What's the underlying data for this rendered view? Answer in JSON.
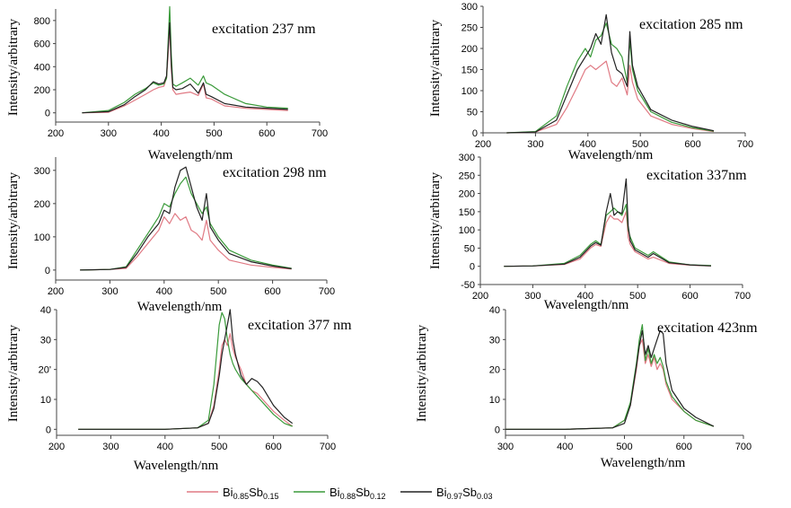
{
  "series_colors": [
    "#e07a84",
    "#3a9a3a",
    "#222222"
  ],
  "chart_data": [
    {
      "type": "line",
      "title": "excitation 237 nm",
      "xlabel": "Wavelength/nm",
      "ylabel": "Intensity/arbitrary",
      "xlim": [
        200,
        700
      ],
      "ylim": [
        -80,
        900
      ],
      "xticks": [
        200,
        300,
        400,
        500,
        600,
        700
      ],
      "yticks": [
        0,
        200,
        400,
        600,
        800
      ],
      "series": [
        {
          "x": [
            250,
            300,
            330,
            350,
            370,
            385,
            395,
            405,
            410,
            413,
            416,
            419,
            422,
            428,
            440,
            455,
            470,
            480,
            485,
            495,
            520,
            560,
            600,
            640
          ],
          "y": [
            0,
            5,
            60,
            110,
            160,
            200,
            220,
            230,
            300,
            500,
            750,
            380,
            200,
            160,
            170,
            180,
            150,
            250,
            130,
            120,
            60,
            40,
            30,
            20
          ]
        },
        {
          "x": [
            250,
            300,
            330,
            350,
            370,
            385,
            395,
            405,
            410,
            413,
            416,
            419,
            422,
            428,
            440,
            455,
            470,
            480,
            485,
            495,
            520,
            560,
            600,
            640
          ],
          "y": [
            0,
            20,
            90,
            160,
            210,
            260,
            240,
            250,
            300,
            600,
            920,
            500,
            250,
            230,
            260,
            300,
            240,
            320,
            260,
            240,
            160,
            80,
            50,
            40
          ]
        },
        {
          "x": [
            250,
            300,
            330,
            350,
            370,
            385,
            395,
            405,
            410,
            413,
            416,
            419,
            422,
            428,
            440,
            455,
            470,
            480,
            485,
            495,
            520,
            560,
            600,
            640
          ],
          "y": [
            0,
            10,
            70,
            140,
            200,
            270,
            250,
            260,
            320,
            550,
            780,
            420,
            220,
            200,
            210,
            250,
            170,
            260,
            160,
            140,
            80,
            50,
            40,
            30
          ]
        }
      ]
    },
    {
      "type": "line",
      "title": "excitation 285 nm",
      "xlabel": "Wavelength/nm",
      "ylabel": "Intensity/arbitrary",
      "xlim": [
        200,
        700
      ],
      "ylim": [
        0,
        300
      ],
      "xticks": [
        200,
        300,
        400,
        500,
        600,
        700
      ],
      "yticks": [
        0,
        50,
        100,
        150,
        200,
        250,
        300
      ],
      "series": [
        {
          "x": [
            245,
            300,
            340,
            360,
            380,
            395,
            405,
            415,
            425,
            435,
            445,
            455,
            465,
            475,
            480,
            485,
            495,
            520,
            560,
            600,
            640
          ],
          "y": [
            0,
            2,
            20,
            60,
            110,
            150,
            160,
            150,
            160,
            170,
            120,
            110,
            130,
            90,
            160,
            120,
            80,
            40,
            20,
            10,
            3
          ]
        },
        {
          "x": [
            245,
            300,
            340,
            360,
            380,
            395,
            405,
            415,
            425,
            435,
            445,
            455,
            465,
            475,
            480,
            485,
            495,
            520,
            560,
            600,
            640
          ],
          "y": [
            0,
            3,
            40,
            110,
            170,
            200,
            180,
            220,
            230,
            260,
            210,
            200,
            180,
            120,
            220,
            150,
            100,
            50,
            25,
            12,
            4
          ]
        },
        {
          "x": [
            245,
            300,
            340,
            360,
            380,
            395,
            405,
            415,
            425,
            435,
            445,
            455,
            465,
            475,
            480,
            485,
            495,
            520,
            560,
            600,
            640
          ],
          "y": [
            0,
            2,
            30,
            90,
            150,
            180,
            200,
            235,
            210,
            280,
            190,
            150,
            140,
            110,
            240,
            160,
            110,
            55,
            30,
            15,
            5
          ]
        }
      ]
    },
    {
      "type": "line",
      "title": "excitation 298 nm",
      "xlabel": "Wavelength/nm",
      "ylabel": "Intensity/arbitrary",
      "xlim": [
        200,
        700
      ],
      "ylim": [
        -30,
        340
      ],
      "xticks": [
        200,
        300,
        400,
        500,
        600,
        700
      ],
      "yticks": [
        0,
        100,
        200,
        300
      ],
      "series": [
        {
          "x": [
            245,
            300,
            330,
            350,
            370,
            390,
            400,
            410,
            420,
            430,
            440,
            450,
            460,
            470,
            478,
            485,
            500,
            520,
            560,
            600,
            635
          ],
          "y": [
            0,
            2,
            5,
            40,
            80,
            120,
            160,
            140,
            170,
            150,
            160,
            120,
            110,
            90,
            150,
            90,
            60,
            30,
            15,
            8,
            3
          ]
        },
        {
          "x": [
            245,
            300,
            330,
            350,
            370,
            390,
            400,
            410,
            420,
            430,
            440,
            450,
            460,
            470,
            478,
            485,
            500,
            520,
            560,
            600,
            635
          ],
          "y": [
            0,
            2,
            10,
            60,
            110,
            160,
            200,
            190,
            230,
            260,
            280,
            230,
            200,
            170,
            190,
            140,
            100,
            60,
            30,
            15,
            5
          ]
        },
        {
          "x": [
            245,
            300,
            330,
            350,
            370,
            390,
            400,
            410,
            420,
            430,
            440,
            450,
            460,
            470,
            478,
            485,
            500,
            520,
            560,
            600,
            635
          ],
          "y": [
            0,
            2,
            8,
            50,
            100,
            140,
            180,
            170,
            250,
            300,
            310,
            250,
            190,
            150,
            230,
            130,
            90,
            50,
            25,
            12,
            4
          ]
        }
      ]
    },
    {
      "type": "line",
      "title": "excitation 337nm",
      "xlabel": "Wavelength/nm",
      "ylabel": "Intensity/arbitrary",
      "xlim": [
        200,
        700
      ],
      "ylim": [
        -50,
        300
      ],
      "xticks": [
        200,
        300,
        400,
        500,
        600,
        700
      ],
      "yticks": [
        -50,
        0,
        50,
        100,
        150,
        200,
        250,
        300
      ],
      "ytick_labels": [
        "-50",
        "0",
        "50",
        "100",
        "150",
        "200",
        "250",
        "300"
      ],
      "series": [
        {
          "x": [
            245,
            300,
            360,
            390,
            410,
            420,
            430,
            440,
            448,
            455,
            462,
            470,
            478,
            482,
            486,
            495,
            520,
            530,
            560,
            600,
            640
          ],
          "y": [
            0,
            1,
            5,
            20,
            50,
            60,
            55,
            120,
            140,
            130,
            130,
            120,
            150,
            80,
            60,
            40,
            20,
            25,
            8,
            3,
            1
          ]
        },
        {
          "x": [
            245,
            300,
            360,
            390,
            410,
            420,
            430,
            440,
            448,
            455,
            462,
            470,
            478,
            482,
            486,
            495,
            520,
            530,
            560,
            600,
            640
          ],
          "y": [
            0,
            1,
            8,
            30,
            60,
            70,
            60,
            140,
            150,
            160,
            150,
            140,
            170,
            100,
            80,
            50,
            30,
            40,
            12,
            4,
            2
          ]
        },
        {
          "x": [
            245,
            300,
            360,
            390,
            410,
            420,
            430,
            440,
            448,
            455,
            462,
            470,
            478,
            482,
            486,
            495,
            520,
            530,
            560,
            600,
            640
          ],
          "y": [
            0,
            1,
            6,
            25,
            55,
            65,
            58,
            150,
            200,
            140,
            150,
            145,
            240,
            110,
            70,
            45,
            25,
            35,
            10,
            4,
            1
          ]
        }
      ]
    },
    {
      "type": "line",
      "title": "excitation 377 nm",
      "xlabel": "Wavelength/nm",
      "ylabel": "Intensity/arbitrary",
      "xlim": [
        200,
        700
      ],
      "ylim": [
        -2,
        40
      ],
      "xticks": [
        200,
        300,
        400,
        500,
        600,
        700
      ],
      "yticks": [
        0,
        10,
        20,
        30,
        40
      ],
      "ytick_labels": [
        "0",
        "10",
        "20'",
        "30",
        "40"
      ],
      "series": [
        {
          "x": [
            240,
            300,
            400,
            460,
            480,
            490,
            500,
            505,
            510,
            515,
            520,
            525,
            530,
            540,
            550,
            560,
            570,
            580,
            600,
            620,
            635
          ],
          "y": [
            0,
            0,
            0,
            0.5,
            2,
            8,
            20,
            28,
            30,
            28,
            32,
            27,
            24,
            20,
            15,
            13,
            12,
            10,
            6,
            3,
            1
          ]
        },
        {
          "x": [
            240,
            300,
            400,
            460,
            480,
            490,
            500,
            505,
            510,
            515,
            520,
            525,
            530,
            540,
            550,
            560,
            570,
            580,
            600,
            620,
            635
          ],
          "y": [
            0,
            0,
            0,
            0.5,
            3,
            15,
            35,
            39,
            37,
            30,
            25,
            22,
            20,
            17,
            15,
            13,
            11,
            9,
            5,
            2,
            1
          ]
        },
        {
          "x": [
            240,
            300,
            400,
            460,
            480,
            490,
            500,
            505,
            510,
            515,
            520,
            525,
            530,
            540,
            550,
            560,
            570,
            580,
            600,
            620,
            635
          ],
          "y": [
            0,
            0,
            0,
            0.5,
            2,
            7,
            18,
            25,
            30,
            35,
            40,
            30,
            25,
            18,
            15,
            17,
            16,
            14,
            8,
            4,
            2
          ]
        }
      ]
    },
    {
      "type": "line",
      "title": "excitation 423nm",
      "xlabel": "Wavelength/nm",
      "ylabel": "Intensity/arbitrary",
      "xlim": [
        300,
        700
      ],
      "ylim": [
        -2,
        40
      ],
      "xticks": [
        300,
        400,
        500,
        600,
        700
      ],
      "yticks": [
        0,
        10,
        20,
        30,
        40
      ],
      "series": [
        {
          "x": [
            300,
            400,
            480,
            500,
            510,
            520,
            525,
            530,
            535,
            540,
            545,
            550,
            555,
            560,
            565,
            570,
            580,
            600,
            620,
            650
          ],
          "y": [
            0,
            0,
            0.5,
            3,
            8,
            20,
            28,
            30,
            22,
            25,
            21,
            24,
            20,
            22,
            20,
            15,
            10,
            6,
            3,
            1
          ]
        },
        {
          "x": [
            300,
            400,
            480,
            500,
            510,
            520,
            525,
            530,
            535,
            540,
            545,
            550,
            555,
            560,
            565,
            570,
            580,
            600,
            620,
            650
          ],
          "y": [
            0,
            0,
            0.5,
            3,
            9,
            22,
            30,
            35,
            23,
            27,
            22,
            25,
            22,
            24,
            21,
            16,
            11,
            6,
            3,
            1
          ]
        },
        {
          "x": [
            300,
            400,
            480,
            500,
            510,
            520,
            525,
            530,
            535,
            540,
            545,
            550,
            555,
            560,
            565,
            570,
            580,
            600,
            620,
            650
          ],
          "y": [
            0,
            0,
            0.5,
            2,
            8,
            21,
            28,
            33,
            25,
            28,
            24,
            27,
            30,
            33,
            32,
            22,
            13,
            7,
            4,
            1
          ]
        }
      ]
    }
  ],
  "legend": [
    {
      "base1": "Bi",
      "sub1": "0.85",
      "base2": "Sb",
      "sub2": "0.15"
    },
    {
      "base1": "Bi",
      "sub1": "0.88",
      "base2": "Sb",
      "sub2": "0.12"
    },
    {
      "base1": "Bi",
      "sub1": "0.97",
      "base2": "Sb",
      "sub2": "0.03"
    }
  ]
}
